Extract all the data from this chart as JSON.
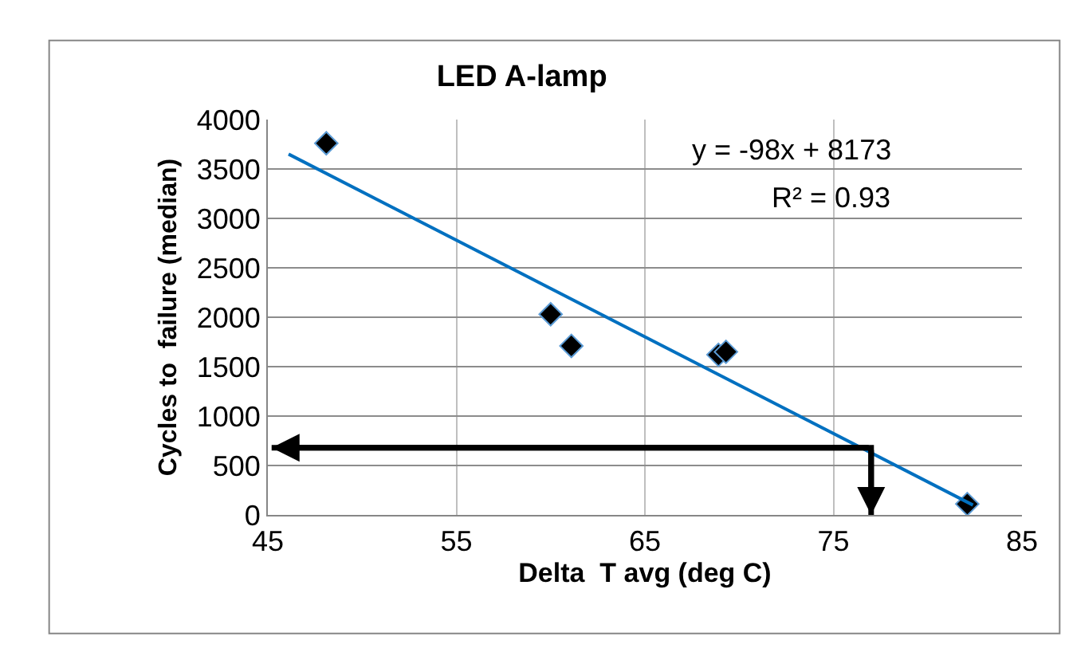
{
  "chart_data": {
    "type": "scatter",
    "title": "LED A-lamp",
    "xlabel": "Delta  T avg (deg C)",
    "ylabel": "Cycles to  failure (median)",
    "xlim": [
      45,
      85
    ],
    "xticks": [
      45,
      55,
      65,
      75,
      85
    ],
    "ylim": [
      0,
      4000
    ],
    "yticks": [
      0,
      500,
      1000,
      1500,
      2000,
      2500,
      3000,
      3500,
      4000
    ],
    "grid": true,
    "annotations": [
      "y = -98x + 8173",
      "R² = 0.93"
    ],
    "series": [
      {
        "x": [
          48.1,
          60.0,
          61.1,
          68.9,
          69.3,
          82.1
        ],
        "values": [
          3760,
          2030,
          1710,
          1620,
          1650,
          110
        ],
        "color": "#000000",
        "marker": "diamond"
      },
      {
        "type": "line",
        "x": [
          46.1,
          82.4
        ],
        "values": [
          3650,
          100
        ],
        "color": "#0070c0",
        "marker": "none"
      },
      {
        "type": "line",
        "x": [
          45.2,
          77,
          77
        ],
        "values": [
          680,
          680,
          0
        ],
        "color": "#000000",
        "marker": "none",
        "line_style": "solid"
      }
    ]
  }
}
